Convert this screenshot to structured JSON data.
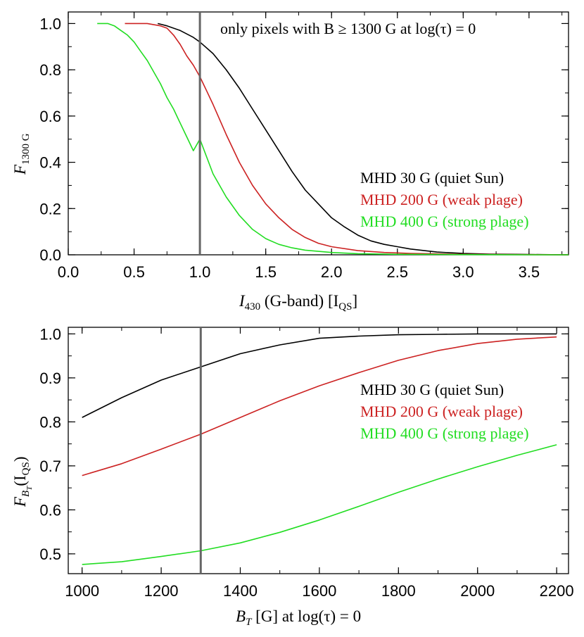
{
  "chart_data": [
    {
      "type": "line",
      "id": "top",
      "annotation": "only pixels with B ≥ 1300 G at log(τ) = 0",
      "xlabel": "I430 (G-band) [IQS]",
      "xlabel_parts": {
        "main": "I",
        "sub": "430",
        "rest": " (G-band) [I",
        "sub2": "QS",
        "close": "]"
      },
      "ylabel_parts": {
        "main": "F",
        "sub": "1300 G"
      },
      "xlim": [
        0.0,
        3.8
      ],
      "ylim": [
        0.0,
        1.05
      ],
      "x_ticks": [
        "0.0",
        "0.5",
        "1.0",
        "1.5",
        "2.0",
        "2.5",
        "3.0",
        "3.5"
      ],
      "y_ticks": [
        "0.0",
        "0.2",
        "0.4",
        "0.6",
        "0.8",
        "1.0"
      ],
      "vline": 1.0,
      "series": [
        {
          "name": "MHD  30 G (quiet Sun)",
          "color": "#000000",
          "x": [
            0.68,
            0.75,
            0.85,
            0.95,
            1.0,
            1.1,
            1.2,
            1.3,
            1.4,
            1.5,
            1.6,
            1.7,
            1.8,
            1.9,
            2.0,
            2.1,
            2.2,
            2.3,
            2.4,
            2.5,
            2.6,
            2.8,
            3.0,
            3.2,
            3.4,
            3.6,
            3.8
          ],
          "y": [
            1.0,
            0.99,
            0.97,
            0.94,
            0.92,
            0.87,
            0.8,
            0.72,
            0.63,
            0.54,
            0.45,
            0.36,
            0.28,
            0.22,
            0.16,
            0.12,
            0.085,
            0.06,
            0.045,
            0.035,
            0.025,
            0.012,
            0.006,
            0.003,
            0.002,
            0.001,
            0.0
          ]
        },
        {
          "name": "MHD 200 G (weak plage)",
          "color": "#cc2222",
          "x": [
            0.43,
            0.5,
            0.6,
            0.7,
            0.75,
            0.8,
            0.85,
            0.9,
            0.95,
            1.0,
            1.05,
            1.1,
            1.2,
            1.3,
            1.4,
            1.5,
            1.6,
            1.7,
            1.8,
            1.9,
            2.0,
            2.2,
            2.4,
            2.6,
            2.8,
            3.0,
            3.4,
            3.8
          ],
          "y": [
            1.0,
            1.0,
            1.0,
            0.99,
            0.98,
            0.95,
            0.91,
            0.86,
            0.82,
            0.77,
            0.71,
            0.65,
            0.52,
            0.4,
            0.3,
            0.22,
            0.16,
            0.11,
            0.075,
            0.05,
            0.035,
            0.018,
            0.01,
            0.006,
            0.004,
            0.002,
            0.001,
            0.0
          ]
        },
        {
          "name": "MHD 400 G (strong plage)",
          "color": "#22dd22",
          "x": [
            0.22,
            0.3,
            0.35,
            0.4,
            0.45,
            0.5,
            0.55,
            0.6,
            0.65,
            0.7,
            0.75,
            0.8,
            0.85,
            0.9,
            0.95,
            1.0,
            1.1,
            1.2,
            1.3,
            1.4,
            1.5,
            1.6,
            1.7,
            1.8,
            2.0,
            2.2,
            2.5,
            3.0,
            3.5,
            3.8
          ],
          "y": [
            1.0,
            1.0,
            0.99,
            0.97,
            0.95,
            0.92,
            0.88,
            0.84,
            0.79,
            0.74,
            0.68,
            0.63,
            0.57,
            0.51,
            0.45,
            0.5,
            0.35,
            0.25,
            0.17,
            0.11,
            0.07,
            0.045,
            0.03,
            0.02,
            0.01,
            0.005,
            0.002,
            0.001,
            0.0,
            0.0
          ]
        }
      ],
      "legend_position": "center-right"
    },
    {
      "type": "line",
      "id": "bottom",
      "xlabel_parts": {
        "main": "B",
        "sub": "T",
        "rest": " [G] at log(τ) = 0"
      },
      "ylabel_parts": {
        "main": "F",
        "sub": "B",
        "subsub": "T",
        "rest": "(I",
        "sub2": "QS",
        "close": ")"
      },
      "xlim": [
        965,
        2230
      ],
      "ylim": [
        0.455,
        1.015
      ],
      "x_ticks": [
        "1000",
        "1200",
        "1400",
        "1600",
        "1800",
        "2000",
        "2200"
      ],
      "y_ticks": [
        "0.5",
        "0.6",
        "0.7",
        "0.8",
        "0.9",
        "1.0"
      ],
      "vline": 1300,
      "series": [
        {
          "name": "MHD  30 G (quiet Sun)",
          "color": "#000000",
          "x": [
            1000,
            1100,
            1200,
            1300,
            1400,
            1500,
            1600,
            1700,
            1800,
            1900,
            2000,
            2100,
            2200
          ],
          "y": [
            0.81,
            0.855,
            0.895,
            0.925,
            0.955,
            0.975,
            0.99,
            0.995,
            0.998,
            0.999,
            1.0,
            1.0,
            1.0
          ]
        },
        {
          "name": "MHD 200 G (weak plage)",
          "color": "#cc2222",
          "x": [
            1000,
            1100,
            1200,
            1300,
            1400,
            1500,
            1600,
            1700,
            1800,
            1900,
            2000,
            2100,
            2200
          ],
          "y": [
            0.678,
            0.705,
            0.738,
            0.772,
            0.81,
            0.848,
            0.882,
            0.912,
            0.94,
            0.962,
            0.978,
            0.988,
            0.993
          ]
        },
        {
          "name": "MHD 400 G (strong plage)",
          "color": "#22dd22",
          "x": [
            1000,
            1100,
            1200,
            1300,
            1400,
            1500,
            1600,
            1700,
            1800,
            1900,
            2000,
            2100,
            2200
          ],
          "y": [
            0.476,
            0.482,
            0.494,
            0.507,
            0.525,
            0.549,
            0.577,
            0.608,
            0.64,
            0.67,
            0.698,
            0.724,
            0.748
          ]
        }
      ],
      "legend_position": "top-right"
    }
  ]
}
